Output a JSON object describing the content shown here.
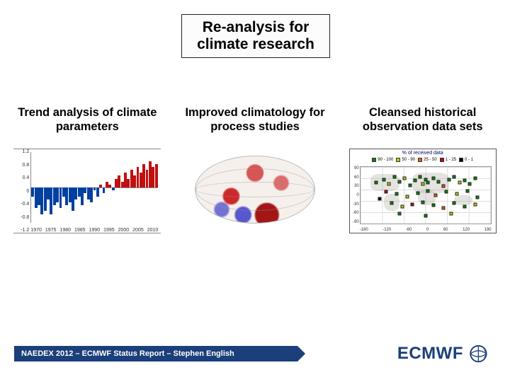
{
  "title": "Re-analysis for climate research",
  "columns": [
    {
      "heading": "Trend analysis of climate parameters"
    },
    {
      "heading": "Improved climatology for process studies"
    },
    {
      "heading": "Cleansed historical observation data sets"
    }
  ],
  "chart1": {
    "type": "bar",
    "yticks": [
      "1.2",
      "0.8",
      "0.4",
      "0",
      "-0.4",
      "-0.8",
      "-1.2"
    ],
    "xticks": [
      "1970",
      "1975",
      "1980",
      "1985",
      "1990",
      "1995",
      "2000",
      "2005",
      "2010"
    ],
    "ylim": [
      -1.2,
      1.2
    ],
    "colors": {
      "neg": "#0040a0",
      "pos": "#c01010",
      "axis": "#888888"
    },
    "bars": [
      -0.3,
      -0.7,
      -0.6,
      -0.9,
      -0.8,
      -0.4,
      -0.9,
      -0.6,
      -0.5,
      -0.7,
      -0.3,
      -0.6,
      -0.5,
      -0.8,
      -0.4,
      -0.3,
      -0.6,
      -0.2,
      -0.4,
      -0.5,
      -0.1,
      -0.3,
      0.1,
      -0.2,
      0.2,
      0.1,
      -0.1,
      0.3,
      0.4,
      0.2,
      0.5,
      0.3,
      0.6,
      0.4,
      0.7,
      0.5,
      0.8,
      0.6,
      0.9,
      0.7,
      0.8
    ],
    "font_size": 7
  },
  "chart2": {
    "type": "globe-heatmap",
    "ellipse_w": 170,
    "ellipse_h": 96,
    "bg": "#f5f0ec",
    "border_color": "#bbbbbb",
    "hot_color": "#c01414",
    "cold_color": "#3c3cc8"
  },
  "chart3": {
    "type": "scatter-map",
    "title": "% of received data",
    "border_color": "#555555",
    "grid_color": "#dddddd",
    "yticks": [
      "90",
      "60",
      "30",
      "0",
      "-30",
      "-60",
      "-90"
    ],
    "xticks": [
      "-180",
      "-120",
      "-60",
      "0",
      "60",
      "120",
      "180"
    ],
    "legend": [
      {
        "label": "90 - 100",
        "color": "#008800"
      },
      {
        "label": "50 - 90",
        "color": "#b8d000"
      },
      {
        "label": "25 - 50",
        "color": "#e06000"
      },
      {
        "label": "1 - 25",
        "color": "#c00000"
      },
      {
        "label": "0 - 1",
        "color": "#000000"
      }
    ],
    "points": [
      {
        "x": 12,
        "y": 28,
        "c": "#008800"
      },
      {
        "x": 18,
        "y": 22,
        "c": "#008800"
      },
      {
        "x": 22,
        "y": 30,
        "c": "#b8d000"
      },
      {
        "x": 26,
        "y": 18,
        "c": "#008800"
      },
      {
        "x": 30,
        "y": 26,
        "c": "#008800"
      },
      {
        "x": 34,
        "y": 20,
        "c": "#b8d000"
      },
      {
        "x": 38,
        "y": 32,
        "c": "#008800"
      },
      {
        "x": 42,
        "y": 24,
        "c": "#008800"
      },
      {
        "x": 46,
        "y": 18,
        "c": "#008800"
      },
      {
        "x": 50,
        "y": 22,
        "c": "#008800"
      },
      {
        "x": 48,
        "y": 30,
        "c": "#b8d000"
      },
      {
        "x": 52,
        "y": 28,
        "c": "#008800"
      },
      {
        "x": 56,
        "y": 20,
        "c": "#008800"
      },
      {
        "x": 60,
        "y": 26,
        "c": "#008800"
      },
      {
        "x": 64,
        "y": 34,
        "c": "#e06000"
      },
      {
        "x": 68,
        "y": 22,
        "c": "#008800"
      },
      {
        "x": 72,
        "y": 18,
        "c": "#008800"
      },
      {
        "x": 76,
        "y": 28,
        "c": "#b8d000"
      },
      {
        "x": 80,
        "y": 24,
        "c": "#008800"
      },
      {
        "x": 84,
        "y": 30,
        "c": "#008800"
      },
      {
        "x": 88,
        "y": 20,
        "c": "#008800"
      },
      {
        "x": 20,
        "y": 44,
        "c": "#c00000"
      },
      {
        "x": 28,
        "y": 48,
        "c": "#008800"
      },
      {
        "x": 36,
        "y": 52,
        "c": "#b8d000"
      },
      {
        "x": 44,
        "y": 46,
        "c": "#008800"
      },
      {
        "x": 52,
        "y": 42,
        "c": "#008800"
      },
      {
        "x": 58,
        "y": 50,
        "c": "#e06000"
      },
      {
        "x": 66,
        "y": 44,
        "c": "#008800"
      },
      {
        "x": 74,
        "y": 48,
        "c": "#b8d000"
      },
      {
        "x": 82,
        "y": 42,
        "c": "#008800"
      },
      {
        "x": 24,
        "y": 64,
        "c": "#008800"
      },
      {
        "x": 32,
        "y": 70,
        "c": "#b8d000"
      },
      {
        "x": 40,
        "y": 66,
        "c": "#c00000"
      },
      {
        "x": 48,
        "y": 62,
        "c": "#008800"
      },
      {
        "x": 56,
        "y": 68,
        "c": "#008800"
      },
      {
        "x": 64,
        "y": 72,
        "c": "#e06000"
      },
      {
        "x": 72,
        "y": 64,
        "c": "#008800"
      },
      {
        "x": 80,
        "y": 70,
        "c": "#008800"
      },
      {
        "x": 88,
        "y": 66,
        "c": "#b8d000"
      },
      {
        "x": 30,
        "y": 82,
        "c": "#008800"
      },
      {
        "x": 50,
        "y": 86,
        "c": "#008800"
      },
      {
        "x": 70,
        "y": 82,
        "c": "#b8d000"
      },
      {
        "x": 15,
        "y": 56,
        "c": "#000000"
      },
      {
        "x": 90,
        "y": 54,
        "c": "#008800"
      }
    ]
  },
  "footer": {
    "text": "NAEDEX 2012 – ECMWF Status Report – Stephen English",
    "bar_color": "#1a3f7a",
    "text_color": "#ffffff"
  },
  "logo": {
    "text": "ECMWF",
    "color": "#1a3f7a"
  }
}
